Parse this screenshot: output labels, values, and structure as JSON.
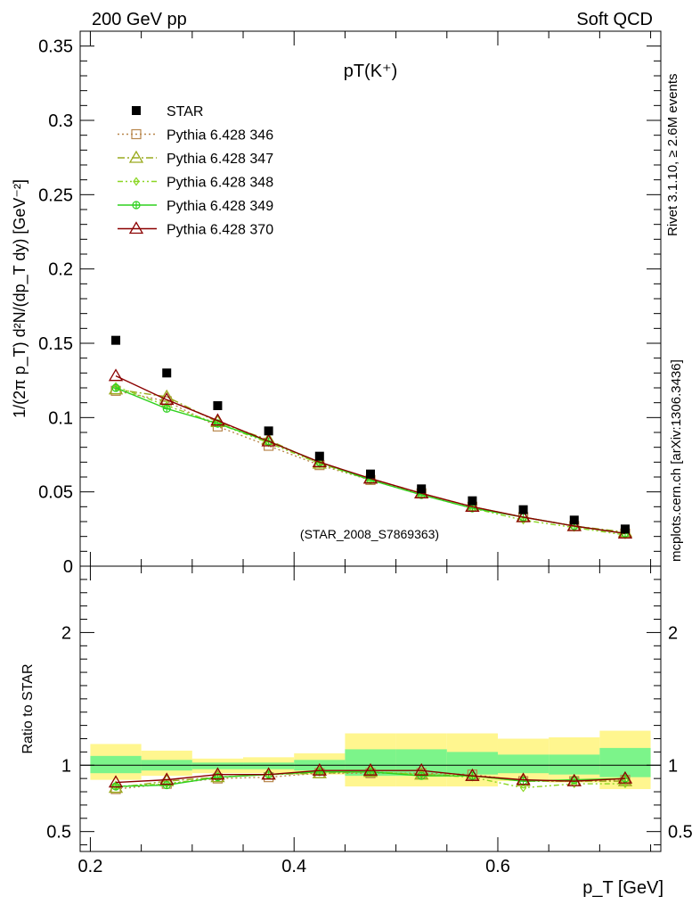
{
  "header": {
    "left": "200 GeV pp",
    "right": "Soft QCD"
  },
  "side_labels": {
    "rivet": "Rivet 3.1.10, ≥ 2.6M events",
    "mcplots": "mcplots.cern.ch [arXiv:1306.3436]"
  },
  "colors": {
    "star": "#000000",
    "p346": "#b8864b",
    "p347": "#9aaa1e",
    "p348": "#8ad622",
    "p349": "#2fd11f",
    "p370": "#8b0000",
    "band_inner": "#7cf48a",
    "band_outer": "#fff68f"
  },
  "chart_data": [
    {
      "type": "scatter",
      "title": "pT(K⁺)",
      "watermark": "(STAR_2008_S7869363)",
      "ylabel": "1/(2π p_T) d²N/(dp_T dy) [GeV⁻²]",
      "xlim": [
        0.19,
        0.76
      ],
      "ylim": [
        0,
        0.36
      ],
      "yticks": [
        "0",
        "0.05",
        "0.1",
        "0.15",
        "0.2",
        "0.25",
        "0.3",
        "0.35"
      ],
      "x": [
        0.225,
        0.275,
        0.325,
        0.375,
        0.425,
        0.475,
        0.525,
        0.575,
        0.625,
        0.675,
        0.725
      ],
      "series": [
        {
          "name": "STAR",
          "values": [
            0.152,
            0.13,
            0.108,
            0.091,
            0.074,
            0.062,
            0.052,
            0.044,
            0.038,
            0.031,
            0.025
          ]
        },
        {
          "name": "Pythia 6.428 346",
          "values": [
            0.118,
            0.111,
            0.094,
            0.081,
            0.068,
            0.058,
            0.049,
            0.04,
            0.033,
            0.027,
            0.022
          ]
        },
        {
          "name": "Pythia 6.428 347",
          "values": [
            0.119,
            0.114,
            0.097,
            0.085,
            0.069,
            0.059,
            0.049,
            0.04,
            0.033,
            0.027,
            0.023
          ]
        },
        {
          "name": "Pythia 6.428 348",
          "values": [
            0.121,
            0.108,
            0.096,
            0.083,
            0.069,
            0.058,
            0.048,
            0.039,
            0.031,
            0.026,
            0.021
          ]
        },
        {
          "name": "Pythia 6.428 349",
          "values": [
            0.12,
            0.106,
            0.096,
            0.084,
            0.07,
            0.058,
            0.048,
            0.039,
            0.033,
            0.027,
            0.022
          ]
        },
        {
          "name": "Pythia 6.428 370",
          "values": [
            0.128,
            0.112,
            0.098,
            0.084,
            0.07,
            0.059,
            0.049,
            0.04,
            0.033,
            0.027,
            0.022
          ]
        }
      ]
    },
    {
      "type": "line",
      "ylabel": "Ratio to STAR",
      "xlabel": "p_T [GeV]",
      "xlim": [
        0.19,
        0.76
      ],
      "ylim": [
        0.35,
        2.5
      ],
      "yticks": [
        "0.5",
        "1",
        "2"
      ],
      "xticks": [
        "0.2",
        "0.4",
        "0.6"
      ],
      "x": [
        0.225,
        0.275,
        0.325,
        0.375,
        0.425,
        0.475,
        0.525,
        0.575,
        0.625,
        0.675,
        0.725
      ],
      "bands": {
        "edges": [
          0.2,
          0.25,
          0.3,
          0.35,
          0.4,
          0.45,
          0.5,
          0.55,
          0.6,
          0.65,
          0.7,
          0.75
        ],
        "inner": [
          [
            0.94,
            1.07
          ],
          [
            0.96,
            1.04
          ],
          [
            0.97,
            1.02
          ],
          [
            0.97,
            1.02
          ],
          [
            0.96,
            1.04
          ],
          [
            0.92,
            1.12
          ],
          [
            0.92,
            1.12
          ],
          [
            0.93,
            1.1
          ],
          [
            0.94,
            1.08
          ],
          [
            0.93,
            1.08
          ],
          [
            0.91,
            1.13
          ]
        ],
        "outer": [
          [
            0.89,
            1.16
          ],
          [
            0.92,
            1.11
          ],
          [
            0.94,
            1.05
          ],
          [
            0.94,
            1.06
          ],
          [
            0.93,
            1.09
          ],
          [
            0.84,
            1.24
          ],
          [
            0.84,
            1.24
          ],
          [
            0.84,
            1.24
          ],
          [
            0.88,
            1.2
          ],
          [
            0.87,
            1.21
          ],
          [
            0.82,
            1.26
          ]
        ]
      },
      "series": [
        {
          "name": "Pythia 6.428 346",
          "values": [
            0.82,
            0.86,
            0.9,
            0.91,
            0.94,
            0.94,
            0.94,
            0.93,
            0.88,
            0.88,
            0.89
          ]
        },
        {
          "name": "Pythia 6.428 347",
          "values": [
            0.83,
            0.88,
            0.91,
            0.93,
            0.94,
            0.95,
            0.93,
            0.92,
            0.88,
            0.88,
            0.88
          ]
        },
        {
          "name": "Pythia 6.428 348",
          "values": [
            0.84,
            0.86,
            0.91,
            0.93,
            0.95,
            0.95,
            0.93,
            0.91,
            0.83,
            0.86,
            0.86
          ]
        },
        {
          "name": "Pythia 6.428 349",
          "values": [
            0.84,
            0.85,
            0.91,
            0.93,
            0.95,
            0.95,
            0.92,
            0.92,
            0.88,
            0.89,
            0.9
          ]
        },
        {
          "name": "Pythia 6.428 370",
          "values": [
            0.87,
            0.89,
            0.93,
            0.93,
            0.96,
            0.96,
            0.96,
            0.92,
            0.89,
            0.88,
            0.9
          ]
        }
      ]
    }
  ]
}
